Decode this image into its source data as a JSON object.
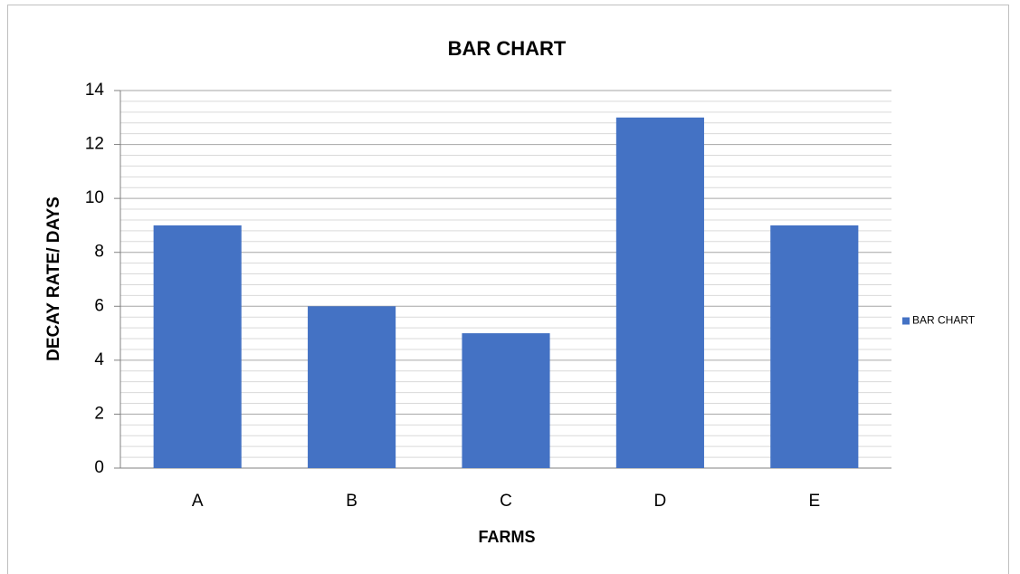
{
  "chart_data": {
    "type": "bar",
    "title": "BAR CHART",
    "x_label": "FARMS",
    "y_label": "DECAY RATE/ DAYS",
    "categories": [
      "A",
      "B",
      "C",
      "D",
      "E"
    ],
    "series": [
      {
        "name": "BAR CHART",
        "color": "#4472c4",
        "values": [
          9,
          6,
          5,
          13,
          9
        ]
      }
    ],
    "ylim": [
      0,
      14
    ],
    "yticks": [
      0,
      2,
      4,
      6,
      8,
      10,
      12,
      14
    ],
    "grid": true,
    "minor_grid_per_major": 5,
    "legend": "right"
  }
}
